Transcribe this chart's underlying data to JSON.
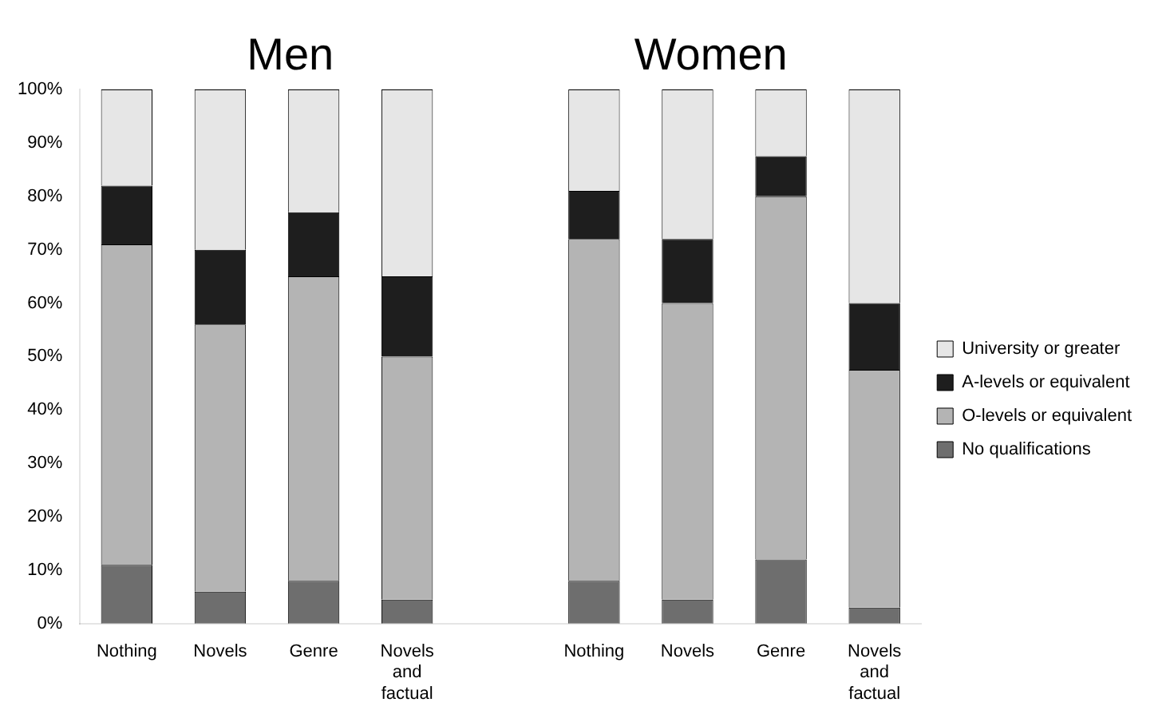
{
  "chart_data": {
    "type": "bar",
    "stacked": true,
    "annotations": [
      "Men",
      "Women"
    ],
    "categories": [
      "Nothing",
      "Novels",
      "Genre",
      "Novels and factual",
      null,
      "Nothing",
      "Novels",
      "Genre",
      "Novels and factual"
    ],
    "series": [
      {
        "name": "No qualifications",
        "color": "#6e6e6e",
        "values": [
          11,
          6,
          8,
          4.5,
          null,
          8,
          4.5,
          12,
          3
        ]
      },
      {
        "name": "O-levels or equivalent",
        "color": "#b4b4b4",
        "values": [
          60,
          50,
          57,
          45.5,
          null,
          64,
          55.5,
          68,
          44.5
        ]
      },
      {
        "name": "A-levels or equivalent",
        "color": "#1e1e1e",
        "values": [
          11,
          14,
          12,
          15,
          null,
          9,
          12,
          7.5,
          12.5
        ]
      },
      {
        "name": "University or greater",
        "color": "#e6e6e6",
        "values": [
          18,
          30,
          23,
          35,
          null,
          19,
          28,
          12.5,
          40
        ]
      }
    ],
    "ylim": [
      0,
      100
    ],
    "yticks": [
      {
        "value": 0,
        "label": "0%"
      },
      {
        "value": 10,
        "label": "10%"
      },
      {
        "value": 20,
        "label": "20%"
      },
      {
        "value": 30,
        "label": "30%"
      },
      {
        "value": 40,
        "label": "40%"
      },
      {
        "value": 50,
        "label": "50%"
      },
      {
        "value": 60,
        "label": "60%"
      },
      {
        "value": 70,
        "label": "70%"
      },
      {
        "value": 80,
        "label": "80%"
      },
      {
        "value": 90,
        "label": "90%"
      },
      {
        "value": 100,
        "label": "100%"
      }
    ],
    "grid": false,
    "legend": "right"
  }
}
